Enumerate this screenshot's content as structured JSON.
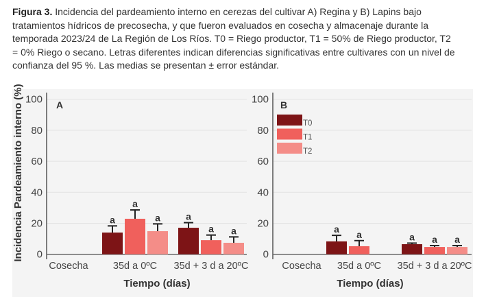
{
  "caption": {
    "label": "Figura 3.",
    "lines": [
      " Incidencia del pardeamiento interno en cerezas del cultivar A) Regina y B) Lapins bajo",
      "tratamientos hídricos de precosecha, y que fueron evaluados en cosecha y almacenaje durante la",
      "temporada 2023/24 de La Región de Los Ríos. T0 = Riego productor, T1 = 50% de Riego productor, T2",
      "= 0% Riego o secano. Letras diferentes indican diferencias significativas entre cultivares con un nivel de",
      "confianza del 95 %. Las medias se presentan ± error estándar."
    ]
  },
  "colors": {
    "T0": "#7d1416",
    "T1": "#f0605c",
    "T2": "#f48d88",
    "panel": "#f4f4f4"
  },
  "chart_data": [
    {
      "type": "bar",
      "panel_label": "A",
      "ylabel": "Incidencia Pardeamiento interno (%)",
      "xlabel": "Tiempo (días)",
      "ylim": [
        0,
        100
      ],
      "yticks": [
        "0",
        "20",
        "40",
        "60",
        "80",
        "100"
      ],
      "categories": [
        "Cosecha",
        "35d a 0ºC",
        "35d + 3 d a 20ºC"
      ],
      "series": [
        {
          "name": "T0",
          "values": [
            0,
            14.0,
            17.1
          ],
          "errors": [
            0,
            4.3,
            3.3
          ],
          "letters": [
            "",
            "a",
            "a"
          ]
        },
        {
          "name": "T1",
          "values": [
            0,
            22.9,
            9.1
          ],
          "errors": [
            0,
            5.7,
            3.3
          ],
          "letters": [
            "",
            "a",
            "a"
          ]
        },
        {
          "name": "T2",
          "values": [
            0,
            14.9,
            7.4
          ],
          "errors": [
            0,
            4.7,
            3.8
          ],
          "letters": [
            "",
            "a",
            "a"
          ]
        }
      ]
    },
    {
      "type": "bar",
      "panel_label": "B",
      "xlabel": "Tiempo (días)",
      "ylim": [
        0,
        100
      ],
      "yticks": [
        "0",
        "20",
        "40",
        "60",
        "80",
        "100"
      ],
      "categories": [
        "Cosecha",
        "35d a 0ºC",
        "35d + 3 d a 20ºC"
      ],
      "legend": [
        "T0",
        "T1",
        "T2"
      ],
      "legend_position": "top-left",
      "series": [
        {
          "name": "T0",
          "values": [
            0,
            8.3,
            6.5
          ],
          "errors": [
            0,
            3.9,
            0.7
          ],
          "letters": [
            "",
            "a",
            "a"
          ]
        },
        {
          "name": "T1",
          "values": [
            0,
            5.2,
            4.7
          ],
          "errors": [
            0,
            3.6,
            0.9
          ],
          "letters": [
            "",
            "a",
            "a"
          ]
        },
        {
          "name": "T2",
          "values": [
            0,
            null,
            4.7
          ],
          "errors": [
            0,
            null,
            0.9
          ],
          "letters": [
            "",
            "",
            "a"
          ]
        }
      ]
    }
  ]
}
